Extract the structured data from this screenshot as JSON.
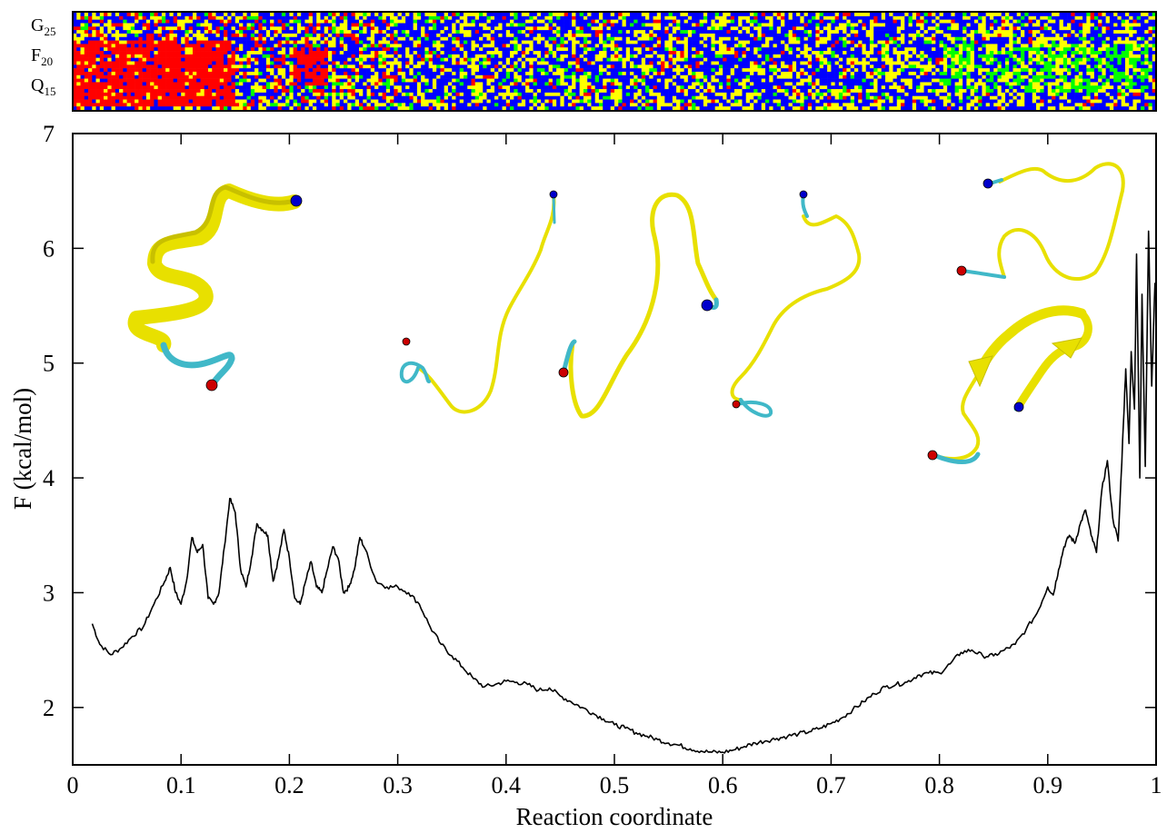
{
  "chart_data": [
    {
      "type": "heatmap",
      "row_labels": [
        {
          "letter": "G",
          "index": "25"
        },
        {
          "letter": "F",
          "index": "20"
        },
        {
          "letter": "Q",
          "index": "15"
        }
      ],
      "colors": {
        "blue": "#0000ff",
        "yellow": "#ffff00",
        "red": "#ff0000",
        "green": "#00ff00"
      },
      "n_rows": 28,
      "n_cols": 280,
      "regions": [
        {
          "x_range": [
            0.0,
            0.15
          ],
          "dominant": "red",
          "rows": "lower half"
        },
        {
          "x_range": [
            0.2,
            0.23
          ],
          "dominant": "red",
          "rows": "middle"
        },
        {
          "x_range": [
            0.3,
            0.85
          ],
          "dominant": "blue/yellow",
          "rows": "all"
        },
        {
          "x_range": [
            0.78,
            0.99
          ],
          "dominant": "green",
          "rows": "middle"
        }
      ]
    },
    {
      "type": "line",
      "xlabel": "Reaction coordinate",
      "ylabel": "F (kcal/mol)",
      "xlim": [
        0,
        1
      ],
      "ylim": [
        1.5,
        7
      ],
      "xticks": [
        "0",
        "0.1",
        "0.2",
        "0.3",
        "0.4",
        "0.5",
        "0.6",
        "0.7",
        "0.8",
        "0.9",
        "1"
      ],
      "yticks": [
        "2",
        "3",
        "4",
        "5",
        "6",
        "7"
      ],
      "line_color": "#000000",
      "series": [
        {
          "x": [
            0.018,
            0.025,
            0.035,
            0.045,
            0.055,
            0.065,
            0.075,
            0.085,
            0.09,
            0.095,
            0.1,
            0.105,
            0.11,
            0.115,
            0.12,
            0.125,
            0.13,
            0.135,
            0.14,
            0.145,
            0.15,
            0.155,
            0.16,
            0.165,
            0.17,
            0.175,
            0.18,
            0.185,
            0.19,
            0.195,
            0.2,
            0.205,
            0.21,
            0.215,
            0.22,
            0.225,
            0.23,
            0.235,
            0.24,
            0.245,
            0.25,
            0.255,
            0.26,
            0.265,
            0.27,
            0.28,
            0.29,
            0.3,
            0.31,
            0.32,
            0.33,
            0.34,
            0.35,
            0.36,
            0.37,
            0.38,
            0.39,
            0.4,
            0.41,
            0.42,
            0.43,
            0.44,
            0.45,
            0.46,
            0.47,
            0.48,
            0.49,
            0.5,
            0.51,
            0.52,
            0.53,
            0.54,
            0.55,
            0.56,
            0.57,
            0.58,
            0.59,
            0.6,
            0.61,
            0.62,
            0.63,
            0.64,
            0.65,
            0.66,
            0.67,
            0.68,
            0.69,
            0.7,
            0.71,
            0.72,
            0.73,
            0.74,
            0.75,
            0.76,
            0.77,
            0.78,
            0.79,
            0.8,
            0.81,
            0.82,
            0.83,
            0.84,
            0.85,
            0.86,
            0.87,
            0.88,
            0.89,
            0.9,
            0.905,
            0.91,
            0.915,
            0.92,
            0.925,
            0.93,
            0.935,
            0.94,
            0.945,
            0.95,
            0.955,
            0.96,
            0.965,
            0.97,
            0.972,
            0.975,
            0.977,
            0.98,
            0.982,
            0.985,
            0.987,
            0.99,
            0.993,
            0.996,
            0.999
          ],
          "y": [
            2.73,
            2.55,
            2.46,
            2.52,
            2.62,
            2.7,
            2.9,
            3.1,
            3.22,
            3.0,
            2.9,
            3.1,
            3.48,
            3.35,
            3.42,
            2.95,
            2.9,
            3.0,
            3.4,
            3.82,
            3.7,
            3.2,
            3.05,
            3.3,
            3.6,
            3.55,
            3.5,
            3.1,
            3.3,
            3.55,
            3.3,
            2.95,
            2.9,
            3.1,
            3.27,
            3.05,
            3.0,
            3.2,
            3.4,
            3.3,
            3.0,
            3.05,
            3.2,
            3.48,
            3.38,
            3.1,
            3.05,
            3.05,
            3.0,
            2.9,
            2.7,
            2.55,
            2.45,
            2.35,
            2.25,
            2.18,
            2.2,
            2.23,
            2.22,
            2.2,
            2.15,
            2.17,
            2.1,
            2.05,
            2.0,
            1.95,
            1.9,
            1.85,
            1.82,
            1.78,
            1.75,
            1.72,
            1.69,
            1.67,
            1.64,
            1.62,
            1.61,
            1.61,
            1.63,
            1.66,
            1.69,
            1.71,
            1.73,
            1.75,
            1.77,
            1.79,
            1.82,
            1.86,
            1.91,
            1.98,
            2.05,
            2.12,
            2.18,
            2.2,
            2.22,
            2.28,
            2.3,
            2.3,
            2.38,
            2.48,
            2.5,
            2.45,
            2.45,
            2.5,
            2.55,
            2.68,
            2.82,
            3.05,
            2.98,
            3.2,
            3.4,
            3.5,
            3.43,
            3.6,
            3.72,
            3.5,
            3.35,
            3.9,
            4.15,
            3.65,
            3.45,
            4.5,
            4.95,
            4.3,
            5.1,
            4.6,
            5.95,
            4.0,
            5.6,
            4.1,
            6.15,
            4.8,
            5.7
          ]
        }
      ]
    }
  ]
}
